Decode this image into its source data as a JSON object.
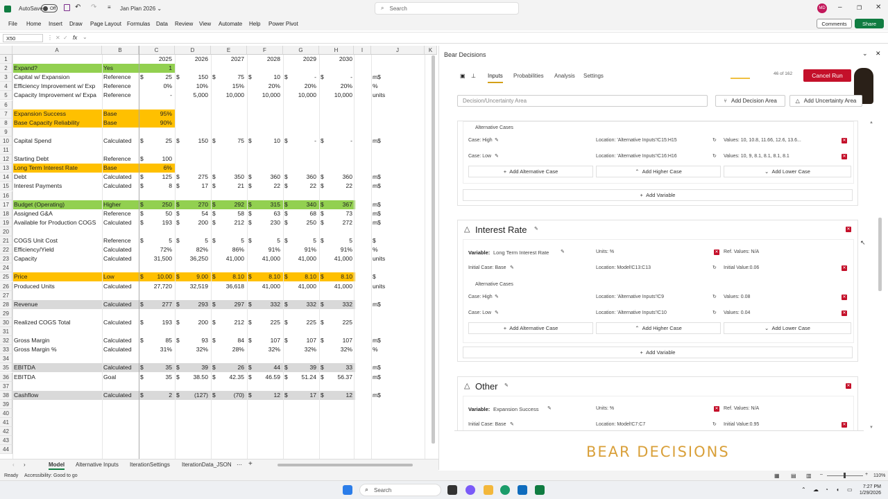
{
  "titlebar": {
    "autosave": "AutoSave",
    "toggle": "Off",
    "filename": "Jan Plan 2026",
    "search": "Search",
    "avatar": "MD"
  },
  "menu": [
    "File",
    "Home",
    "Insert",
    "Draw",
    "Page Layout",
    "Formulas",
    "Data",
    "Review",
    "View",
    "Automate",
    "Help",
    "Power Pivot"
  ],
  "menu_buttons": {
    "comments": "Comments",
    "share": "Share"
  },
  "formula": {
    "namebox": "X50",
    "fx": "fx"
  },
  "columns": [
    "A",
    "B",
    "C",
    "D",
    "E",
    "F",
    "G",
    "H",
    "I",
    "J",
    "K"
  ],
  "rows": [
    {
      "n": "1",
      "a": "",
      "b": "",
      "v": [
        "2025",
        "2026",
        "2027",
        "2028",
        "2029",
        "2030"
      ],
      "j": ""
    },
    {
      "n": "2",
      "a": "Expand?",
      "b": "Yes",
      "v": [
        "1",
        "",
        "",
        "",
        "",
        ""
      ],
      "j": "",
      "fill": "green"
    },
    {
      "n": "3",
      "a": "Capital w/ Expansion",
      "b": "Reference",
      "v": [
        "25",
        "150",
        "75",
        "10",
        "-",
        "-"
      ],
      "d": true,
      "j": "m$"
    },
    {
      "n": "4",
      "a": "Efficiency Improvement w/ Exp",
      "b": "Reference",
      "v": [
        "0%",
        "10%",
        "15%",
        "20%",
        "20%",
        "20%"
      ],
      "j": "%"
    },
    {
      "n": "5",
      "a": "Capacity Improvement w/ Expa",
      "b": "Reference",
      "v": [
        "-",
        "5,000",
        "10,000",
        "10,000",
        "10,000",
        "10,000"
      ],
      "j": "units"
    },
    {
      "n": "6",
      "a": "",
      "b": "",
      "v": [
        "",
        "",
        "",
        "",
        "",
        ""
      ],
      "j": ""
    },
    {
      "n": "7",
      "a": "Expansion Success",
      "b": "Base",
      "v": [
        "95%",
        "",
        "",
        "",
        "",
        ""
      ],
      "j": "",
      "fill": "orange"
    },
    {
      "n": "8",
      "a": "Base Capacity Reliability",
      "b": "Base",
      "v": [
        "90%",
        "",
        "",
        "",
        "",
        ""
      ],
      "j": "",
      "fill": "orange"
    },
    {
      "n": "9",
      "a": "",
      "b": "",
      "v": [
        "",
        "",
        "",
        "",
        "",
        ""
      ],
      "j": ""
    },
    {
      "n": "10",
      "a": "Capital Spend",
      "b": "Calculated",
      "v": [
        "25",
        "150",
        "75",
        "10",
        "-",
        "-"
      ],
      "d": true,
      "j": "m$"
    },
    {
      "n": "11",
      "a": "",
      "b": "",
      "v": [
        "",
        "",
        "",
        "",
        "",
        ""
      ],
      "j": ""
    },
    {
      "n": "12",
      "a": "Starting Debt",
      "b": "Reference",
      "v": [
        "100",
        "",
        "",
        "",
        "",
        ""
      ],
      "d1": true,
      "j": ""
    },
    {
      "n": "13",
      "a": "Long Term Interest Rate",
      "b": "Base",
      "v": [
        "6%",
        "",
        "",
        "",
        "",
        ""
      ],
      "j": "",
      "fill": "orange"
    },
    {
      "n": "14",
      "a": "Debt",
      "b": "Calculated",
      "v": [
        "125",
        "275",
        "350",
        "360",
        "360",
        "360"
      ],
      "d": true,
      "j": "m$"
    },
    {
      "n": "15",
      "a": "Interest Payments",
      "b": "Calculated",
      "v": [
        "8",
        "17",
        "21",
        "22",
        "22",
        "22"
      ],
      "d": true,
      "j": "m$"
    },
    {
      "n": "16",
      "a": "",
      "b": "",
      "v": [
        "",
        "",
        "",
        "",
        "",
        ""
      ],
      "j": ""
    },
    {
      "n": "17",
      "a": "Budget (Operating)",
      "b": "Higher",
      "v": [
        "250",
        "270",
        "292",
        "315",
        "340",
        "367"
      ],
      "d": true,
      "j": "m$",
      "fill": "green"
    },
    {
      "n": "18",
      "a": "Assigned G&A",
      "b": "Reference",
      "v": [
        "50",
        "54",
        "58",
        "63",
        "68",
        "73"
      ],
      "d": true,
      "j": "m$"
    },
    {
      "n": "19",
      "a": "Available for Production COGS",
      "b": "Calculated",
      "v": [
        "193",
        "200",
        "212",
        "230",
        "250",
        "272"
      ],
      "d": true,
      "j": "m$"
    },
    {
      "n": "20",
      "a": "",
      "b": "",
      "v": [
        "",
        "",
        "",
        "",
        "",
        ""
      ],
      "j": ""
    },
    {
      "n": "21",
      "a": "COGS Unit Cost",
      "b": "Reference",
      "v": [
        "5",
        "5",
        "5",
        "5",
        "5",
        "5"
      ],
      "d": true,
      "j": "$"
    },
    {
      "n": "22",
      "a": "Efficiency/Yield",
      "b": "Calculated",
      "v": [
        "72%",
        "82%",
        "86%",
        "91%",
        "91%",
        "91%"
      ],
      "j": "%"
    },
    {
      "n": "23",
      "a": "Capacity",
      "b": "Calculated",
      "v": [
        "31,500",
        "36,250",
        "41,000",
        "41,000",
        "41,000",
        "41,000"
      ],
      "j": "units"
    },
    {
      "n": "24",
      "a": "",
      "b": "",
      "v": [
        "",
        "",
        "",
        "",
        "",
        ""
      ],
      "j": ""
    },
    {
      "n": "25",
      "a": "Price",
      "b": "Low",
      "v": [
        "10.00",
        "9.00",
        "8.10",
        "8.10",
        "8.10",
        "8.10"
      ],
      "d": true,
      "j": "$",
      "fill": "orange"
    },
    {
      "n": "26",
      "a": "Produced Units",
      "b": "Calculated",
      "v": [
        "27,720",
        "32,519",
        "36,618",
        "41,000",
        "41,000",
        "41,000"
      ],
      "j": "units"
    },
    {
      "n": "27",
      "a": "",
      "b": "",
      "v": [
        "",
        "",
        "",
        "",
        "",
        ""
      ],
      "j": ""
    },
    {
      "n": "28",
      "a": "Revenue",
      "b": "Calculated",
      "v": [
        "277",
        "293",
        "297",
        "332",
        "332",
        "332"
      ],
      "d": true,
      "j": "m$",
      "fill": "gray"
    },
    {
      "n": "29",
      "a": "",
      "b": "",
      "v": [
        "",
        "",
        "",
        "",
        "",
        ""
      ],
      "j": ""
    },
    {
      "n": "30",
      "a": "Realized COGS Total",
      "b": "Calculated",
      "v": [
        "193",
        "200",
        "212",
        "225",
        "225",
        "225"
      ],
      "d": true,
      "j": ""
    },
    {
      "n": "31",
      "a": "",
      "b": "",
      "v": [
        "",
        "",
        "",
        "",
        "",
        ""
      ],
      "j": ""
    },
    {
      "n": "32",
      "a": "Gross Margin",
      "b": "Calculated",
      "v": [
        "85",
        "93",
        "84",
        "107",
        "107",
        "107"
      ],
      "d": true,
      "j": "m$"
    },
    {
      "n": "33",
      "a": "Gross Margin %",
      "b": "Calculated",
      "v": [
        "31%",
        "32%",
        "28%",
        "32%",
        "32%",
        "32%"
      ],
      "j": "%"
    },
    {
      "n": "34",
      "a": "",
      "b": "",
      "v": [
        "",
        "",
        "",
        "",
        "",
        ""
      ],
      "j": ""
    },
    {
      "n": "35",
      "a": "EBITDA",
      "b": "Calculated",
      "v": [
        "35",
        "39",
        "26",
        "44",
        "39",
        "33"
      ],
      "d": true,
      "j": "m$",
      "fill": "gray"
    },
    {
      "n": "36",
      "a": "EBITDA",
      "b": "Goal",
      "v": [
        "35",
        "38.50",
        "42.35",
        "46.59",
        "51.24",
        "56.37"
      ],
      "d": true,
      "j": "m$"
    },
    {
      "n": "37",
      "a": "",
      "b": "",
      "v": [
        "",
        "",
        "",
        "",
        "",
        ""
      ],
      "j": ""
    },
    {
      "n": "38",
      "a": "Cashflow",
      "b": "Calculated",
      "v": [
        "2",
        "(127)",
        "(70)",
        "12",
        "17",
        "12"
      ],
      "d": true,
      "j": "m$",
      "fill": "gray"
    },
    {
      "n": "39",
      "a": "",
      "b": "",
      "v": [
        "",
        "",
        "",
        "",
        "",
        ""
      ],
      "j": ""
    },
    {
      "n": "40",
      "a": "",
      "b": "",
      "v": [
        "",
        "",
        "",
        "",
        "",
        ""
      ],
      "j": ""
    },
    {
      "n": "41",
      "a": "",
      "b": "",
      "v": [
        "",
        "",
        "",
        "",
        "",
        ""
      ],
      "j": ""
    },
    {
      "n": "42",
      "a": "",
      "b": "",
      "v": [
        "",
        "",
        "",
        "",
        "",
        ""
      ],
      "j": ""
    },
    {
      "n": "43",
      "a": "",
      "b": "",
      "v": [
        "",
        "",
        "",
        "",
        "",
        ""
      ],
      "j": ""
    },
    {
      "n": "44",
      "a": "",
      "b": "",
      "v": [
        "",
        "",
        "",
        "",
        "",
        ""
      ],
      "j": ""
    }
  ],
  "sheet_tabs": [
    "Model",
    "Alternative Inputs",
    "IterationSettings",
    "IterationData_JSON"
  ],
  "status": {
    "ready": "Ready",
    "accessibility": "Accessibility: Good to go",
    "zoom": "110%"
  },
  "taskbar": {
    "search": "Search",
    "time": "7:27 PM",
    "date": "1/29/2026"
  },
  "panel": {
    "title": "Bear Decisions",
    "tabs": [
      "Inputs",
      "Probabilities",
      "Analysis",
      "Settings"
    ],
    "progress_text": "46 of 162",
    "cancel": "Cancel Run",
    "area_placeholder": "Decision/Uncertainty Area",
    "add_decision": "Add Decision Area",
    "add_uncertainty": "Add Uncertainty Area",
    "top_card": {
      "alt_cases": "Alternative Cases",
      "high": {
        "case": "Case: High",
        "location": "Location: 'Alternative Inputs'!C15:H15",
        "values": "Values: 10, 10.8, 11.66, 12.6, 13.6..."
      },
      "low": {
        "case": "Case: Low",
        "location": "Location: 'Alternative Inputs'!C16:H16",
        "values": "Values: 10, 9, 8.1, 8.1, 8.1, 8.1"
      }
    },
    "interest": {
      "title": "Interest Rate",
      "var_label": "Variable:",
      "var_name": "Long Term Interest Rate",
      "units": "Units: %",
      "ref": "Ref. Values: N/A",
      "initial": "Initial Case: Base",
      "location": "Location: Model!C13:C13",
      "initial_value": "Initial Value:0.06",
      "alt_cases": "Alternative Cases",
      "high": {
        "case": "Case: High",
        "location": "Location: 'Alternative Inputs'!C9",
        "values": "Values: 0.08"
      },
      "low": {
        "case": "Case: Low",
        "location": "Location: 'Alternative Inputs'!C10",
        "values": "Values: 0.04"
      }
    },
    "other": {
      "title": "Other",
      "var_label": "Variable:",
      "var_name": "Expansion Success",
      "units": "Units: %",
      "ref": "Ref. Values: N/A",
      "initial": "Initial Case: Base",
      "location": "Location: Model!C7:C7",
      "initial_value": "Initial Value:0.95"
    },
    "add_alt": "Add Alternative Case",
    "add_higher": "Add Higher Case",
    "add_lower": "Add Lower Case",
    "add_variable": "Add Variable",
    "logo": "BEAR DECISIONS"
  }
}
